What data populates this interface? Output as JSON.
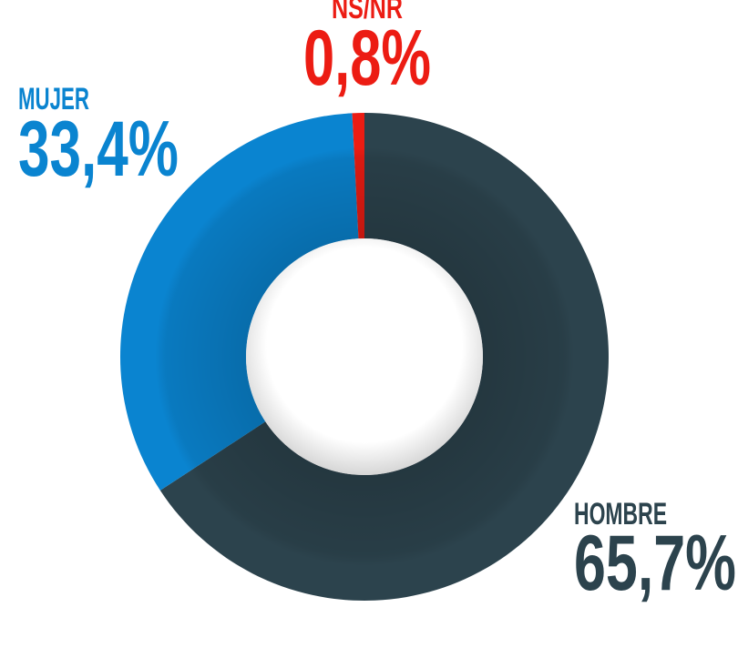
{
  "chart_data": {
    "type": "donut",
    "categories": [
      "HOMBRE",
      "MUJER",
      "NS/NR"
    ],
    "values": [
      65.7,
      33.4,
      0.8
    ],
    "value_labels": [
      "65,7%",
      "33,4%",
      "0,8%"
    ],
    "colors": [
      "#2c434d",
      "#0a84d0",
      "#ec1c13"
    ]
  }
}
